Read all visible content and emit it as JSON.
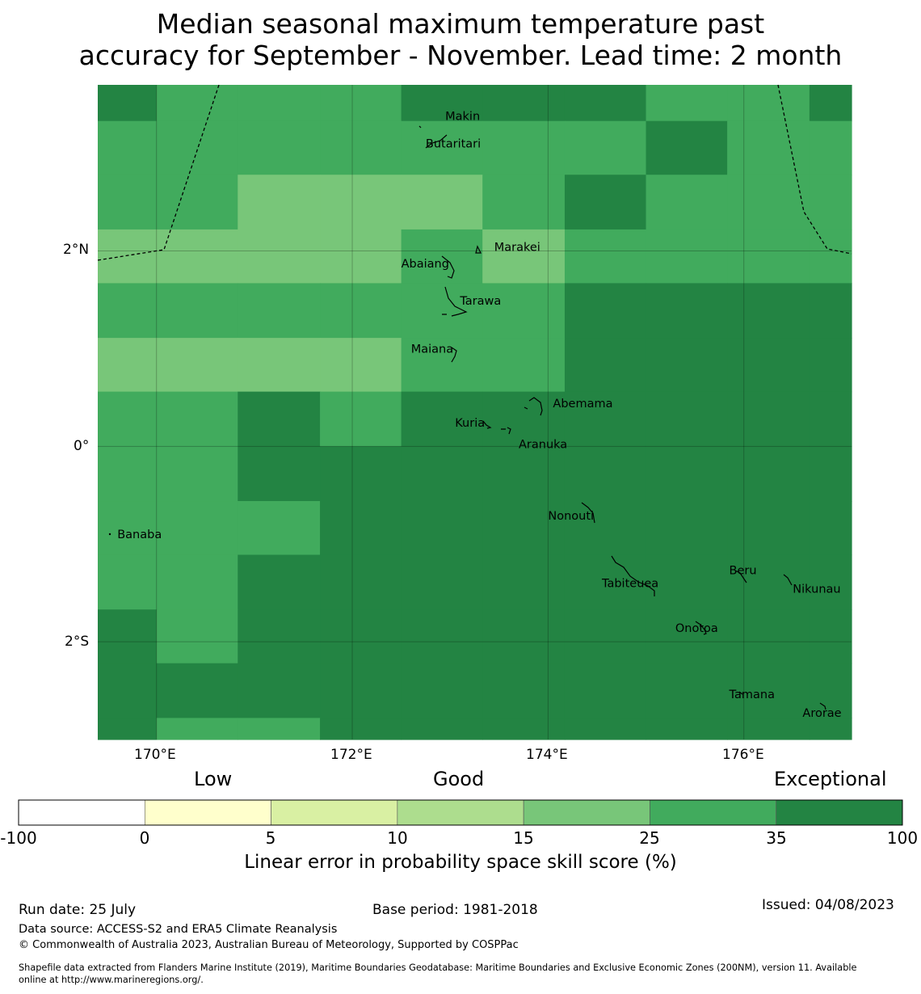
{
  "title": {
    "line1": "Median seasonal maximum temperature past",
    "line2": "accuracy for September - November. Lead time: 2 month"
  },
  "map": {
    "lat_labels": [
      "2°N",
      "0°",
      "2°S"
    ],
    "lon_labels": [
      "170°E",
      "172°E",
      "174°E",
      "176°E"
    ],
    "extent": {
      "lon_min": 169.4,
      "lon_max": 177.1,
      "lat_min": -3.0,
      "lat_max": 3.7
    },
    "grid_lon_edges": [
      169.4,
      170.0,
      170.83,
      171.67,
      172.5,
      173.33,
      174.17,
      175.0,
      175.83,
      176.67,
      177.1
    ],
    "grid_lat_edges": [
      3.7,
      3.33,
      2.78,
      2.22,
      1.67,
      1.11,
      0.56,
      0.0,
      -0.56,
      -1.11,
      -1.67,
      -2.22,
      -2.78,
      -3.0
    ],
    "cell_classes": [
      [
        "35-100",
        "25-35",
        "25-35",
        "25-35",
        "35-100",
        "35-100",
        "35-100",
        "25-35",
        "25-35",
        "35-100"
      ],
      [
        "25-35",
        "25-35",
        "25-35",
        "25-35",
        "25-35",
        "25-35",
        "25-35",
        "35-100",
        "25-35",
        "25-35"
      ],
      [
        "25-35",
        "25-35",
        "15-25",
        "15-25",
        "15-25",
        "25-35",
        "35-100",
        "25-35",
        "25-35",
        "25-35"
      ],
      [
        "15-25",
        "15-25",
        "15-25",
        "15-25",
        "25-35",
        "15-25",
        "25-35",
        "25-35",
        "25-35",
        "25-35"
      ],
      [
        "25-35",
        "25-35",
        "25-35",
        "25-35",
        "25-35",
        "25-35",
        "35-100",
        "35-100",
        "35-100",
        "35-100"
      ],
      [
        "15-25",
        "15-25",
        "15-25",
        "15-25",
        "25-35",
        "25-35",
        "35-100",
        "35-100",
        "35-100",
        "35-100"
      ],
      [
        "25-35",
        "25-35",
        "35-100",
        "25-35",
        "35-100",
        "35-100",
        "35-100",
        "35-100",
        "35-100",
        "35-100"
      ],
      [
        "25-35",
        "25-35",
        "35-100",
        "35-100",
        "35-100",
        "35-100",
        "35-100",
        "35-100",
        "35-100",
        "35-100"
      ],
      [
        "25-35",
        "25-35",
        "25-35",
        "35-100",
        "35-100",
        "35-100",
        "35-100",
        "35-100",
        "35-100",
        "35-100"
      ],
      [
        "25-35",
        "25-35",
        "35-100",
        "35-100",
        "35-100",
        "35-100",
        "35-100",
        "35-100",
        "35-100",
        "35-100"
      ],
      [
        "35-100",
        "25-35",
        "35-100",
        "35-100",
        "35-100",
        "35-100",
        "35-100",
        "35-100",
        "35-100",
        "35-100"
      ],
      [
        "35-100",
        "35-100",
        "35-100",
        "35-100",
        "35-100",
        "35-100",
        "35-100",
        "35-100",
        "35-100",
        "35-100"
      ],
      [
        "35-100",
        "25-35",
        "25-35",
        "35-100",
        "35-100",
        "35-100",
        "35-100",
        "35-100",
        "35-100",
        "35-100"
      ]
    ],
    "places": [
      {
        "name": "Makin",
        "lon": 172.95,
        "lat": 3.34
      },
      {
        "name": "Butaritari",
        "lon": 172.75,
        "lat": 3.06
      },
      {
        "name": "Marakei",
        "lon": 173.45,
        "lat": 2.0
      },
      {
        "name": "Abaiang",
        "lon": 172.5,
        "lat": 1.83
      },
      {
        "name": "Tarawa",
        "lon": 173.1,
        "lat": 1.45
      },
      {
        "name": "Maiana",
        "lon": 172.6,
        "lat": 0.96
      },
      {
        "name": "Abemama",
        "lon": 174.05,
        "lat": 0.4
      },
      {
        "name": "Kuria",
        "lon": 173.05,
        "lat": 0.2
      },
      {
        "name": "Aranuka",
        "lon": 173.7,
        "lat": -0.02
      },
      {
        "name": "Nonouti",
        "lon": 174.0,
        "lat": -0.75
      },
      {
        "name": "Banaba",
        "lon": 169.6,
        "lat": -0.94
      },
      {
        "name": "Beru",
        "lon": 175.85,
        "lat": -1.31
      },
      {
        "name": "Tabiteuea",
        "lon": 174.55,
        "lat": -1.44
      },
      {
        "name": "Nikunau",
        "lon": 176.5,
        "lat": -1.5
      },
      {
        "name": "Onotoa",
        "lon": 175.3,
        "lat": -1.9
      },
      {
        "name": "Tamana",
        "lon": 175.85,
        "lat": -2.58
      },
      {
        "name": "Arorae",
        "lon": 176.6,
        "lat": -2.77
      }
    ]
  },
  "legend": {
    "categories": [
      "Low",
      "Good",
      "Exceptional"
    ],
    "bins": [
      {
        "from": "-100",
        "to": "0",
        "color": "#ffffff"
      },
      {
        "from": "0",
        "to": "5",
        "color": "#ffffcc"
      },
      {
        "from": "5",
        "to": "10",
        "color": "#d9f0a3"
      },
      {
        "from": "10",
        "to": "15",
        "color": "#addd8e"
      },
      {
        "from": "15",
        "to": "25",
        "color": "#78c679"
      },
      {
        "from": "25",
        "to": "35",
        "color": "#41ab5d"
      },
      {
        "from": "35",
        "to": "100",
        "color": "#238443"
      }
    ],
    "ticks": [
      "-100",
      "0",
      "5",
      "10",
      "15",
      "25",
      "35",
      "100"
    ],
    "label": "Linear error in probability space skill score (%)"
  },
  "footer": {
    "run_date": "Run date: 25 July",
    "base_period": "Base period: 1981-2018",
    "issued": "Issued: 04/08/2023",
    "data_source": "Data source: ACCESS-S2 and ERA5 Climate Reanalysis",
    "copyright": "© Commonwealth of Australia 2023, Australian Bureau of Meteorology, Supported by COSPPac",
    "shapefile_line1": "Shapefile data extracted from Flanders Marine Institute (2019), Maritime Boundaries Geodatabase: Maritime Boundaries and Exclusive Economic Zones (200NM), version 11. Available",
    "shapefile_line2": "online at http://www.marineregions.org/."
  }
}
